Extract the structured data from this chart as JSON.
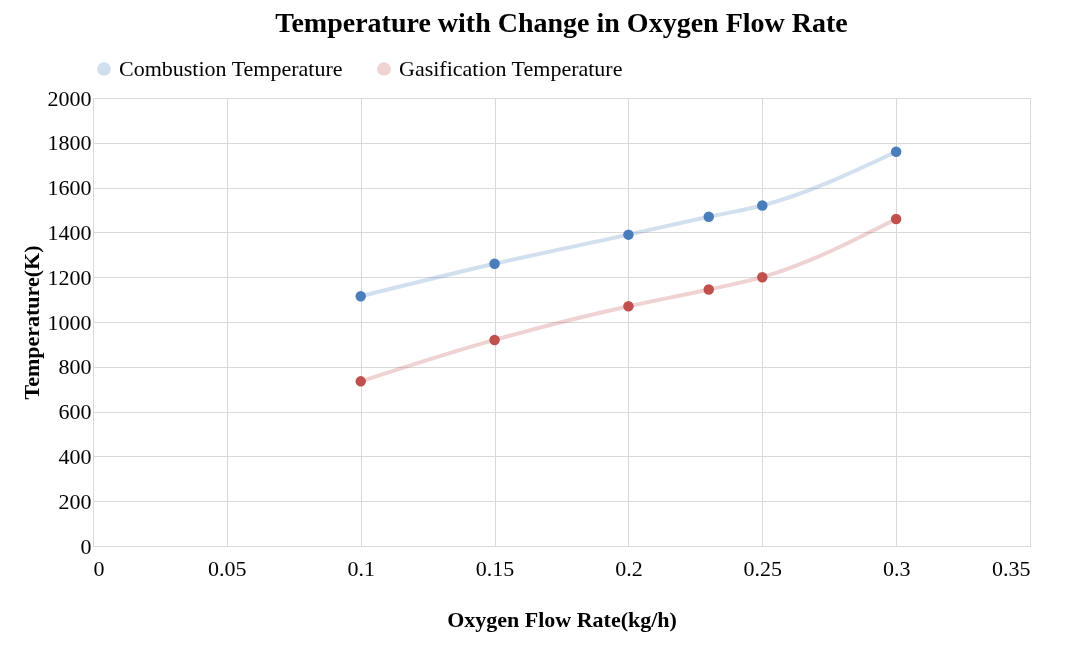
{
  "chart_data": {
    "type": "line",
    "title": "Temperature with Change in Oxygen Flow Rate",
    "xlabel": "Oxygen Flow Rate(kg/h)",
    "ylabel": "Temperature(K)",
    "x": [
      0.1,
      0.15,
      0.2,
      0.23,
      0.25,
      0.3
    ],
    "series": [
      {
        "name": "Combustion Temperature",
        "color": "#4a7ebb",
        "values": [
          1115,
          1260,
          1390,
          1470,
          1520,
          1760
        ]
      },
      {
        "name": "Gasification Temperature",
        "color": "#c0504d",
        "values": [
          735,
          920,
          1070,
          1145,
          1200,
          1460
        ]
      }
    ],
    "xlim": [
      0,
      0.35
    ],
    "xticks": [
      0,
      0.05,
      0.1,
      0.15,
      0.2,
      0.25,
      0.3,
      0.35
    ],
    "ylim": [
      0,
      2000
    ],
    "yticks": [
      0,
      200,
      400,
      600,
      800,
      1000,
      1200,
      1400,
      1600,
      1800,
      2000
    ],
    "grid": true,
    "legend": "top",
    "marker": "circle",
    "line_style": "solid"
  }
}
